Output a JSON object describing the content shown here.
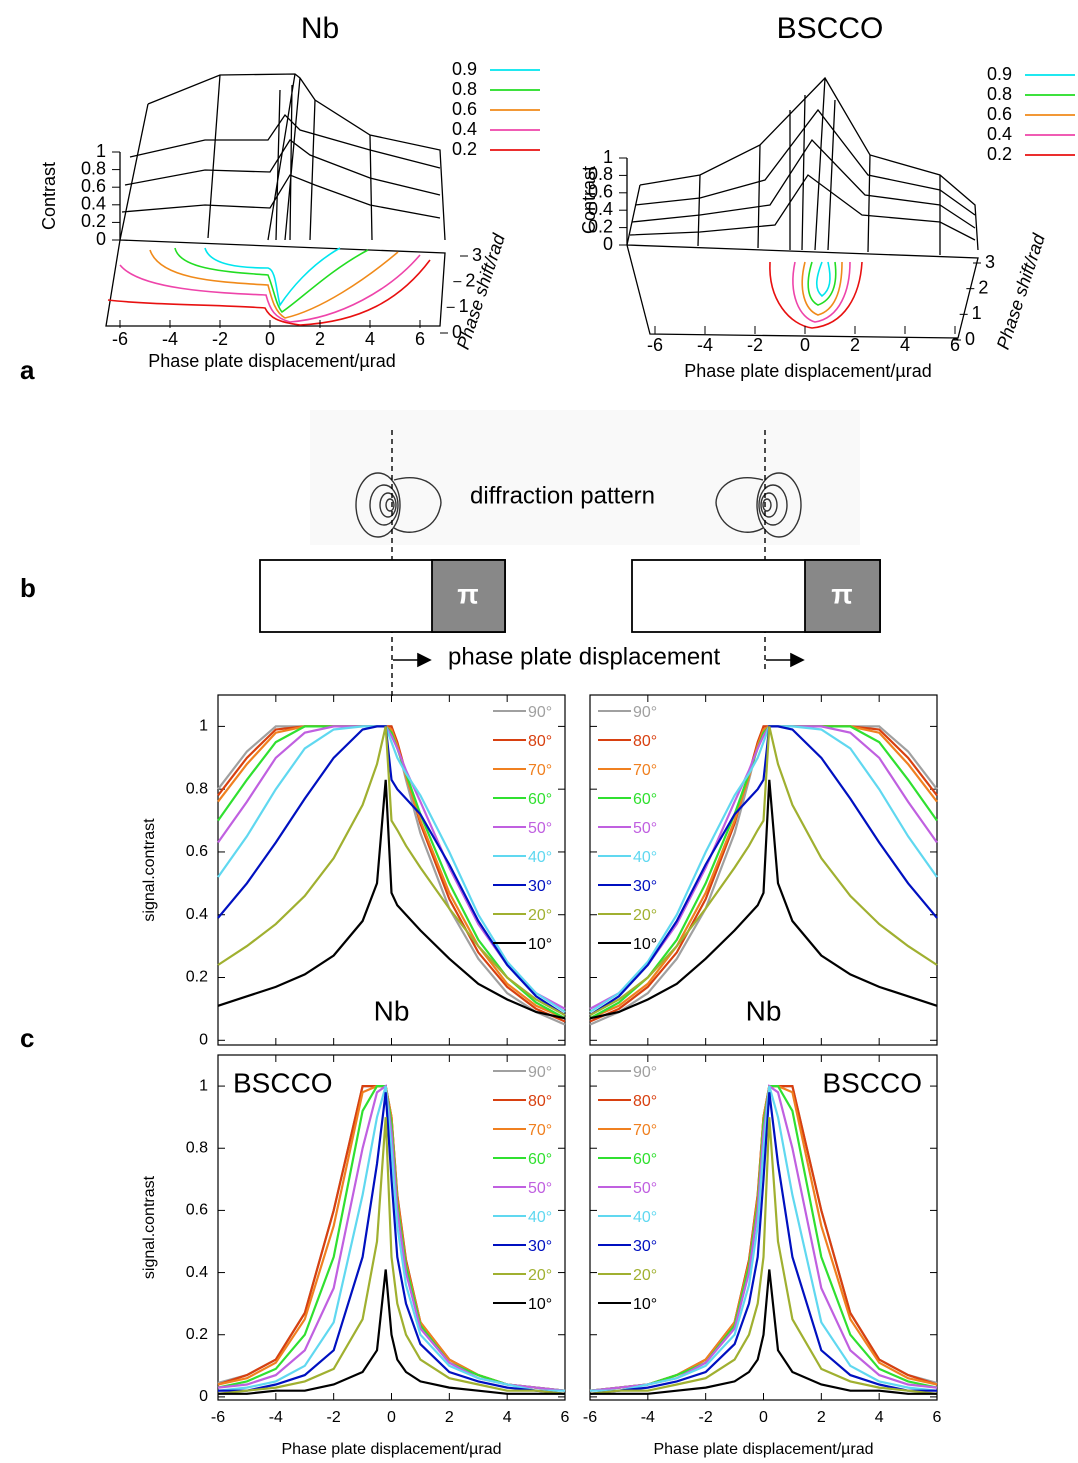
{
  "panel_labels": [
    "a",
    "b",
    "c"
  ],
  "panel_a": {
    "plots": [
      {
        "title": "Nb",
        "zlabel": "Contrast",
        "zticks": [
          0,
          0.2,
          0.4,
          0.6,
          0.8,
          1
        ],
        "xticks": [
          -6,
          -4,
          -2,
          0,
          2,
          4,
          6
        ],
        "yticks": [
          0,
          1,
          2,
          3
        ],
        "xlabel": "Phase plate displacement/µrad",
        "ylabel": "Phase shift/rad",
        "legend": [
          {
            "name": "0.9",
            "color": "#00e5ee"
          },
          {
            "name": "0.8",
            "color": "#22dd22"
          },
          {
            "name": "0.6",
            "color": "#f08a1a"
          },
          {
            "name": "0.4",
            "color": "#ee44aa"
          },
          {
            "name": "0.2",
            "color": "#e81010"
          }
        ]
      },
      {
        "title": "BSCCO",
        "zlabel": "Contrast",
        "zticks": [
          0,
          0.2,
          0.4,
          0.6,
          0.8,
          1
        ],
        "xticks": [
          -6,
          -4,
          -2,
          0,
          2,
          4,
          6
        ],
        "yticks": [
          0,
          1,
          2,
          3
        ],
        "xlabel": "Phase plate displacement/µrad",
        "ylabel": "Phase shift/rad",
        "legend": [
          {
            "name": "0.9",
            "color": "#00e5ee"
          },
          {
            "name": "0.8",
            "color": "#22dd22"
          },
          {
            "name": "0.6",
            "color": "#f08a1a"
          },
          {
            "name": "0.4",
            "color": "#ee44aa"
          },
          {
            "name": "0.2",
            "color": "#e81010"
          }
        ]
      }
    ]
  },
  "panel_b": {
    "annotation": "diffraction pattern",
    "phase_label": "π",
    "xlabel": "phase plate displacement"
  },
  "chart_data": [
    {
      "type": "line",
      "ylabel": "signal.contrast",
      "annotation": "Nb",
      "annotation_corner": "lower center",
      "legend_corner": "upper right",
      "x": [
        -6,
        -5,
        -4,
        -3,
        -2,
        -1,
        -0.5,
        -0.2,
        0,
        0.2,
        0.5,
        1,
        2,
        3,
        4,
        5,
        6
      ],
      "xlim": [
        -6,
        6
      ],
      "xticks": [
        -6,
        -4,
        -2,
        0,
        2,
        4,
        6
      ],
      "show_xtick_labels": false,
      "ylim": [
        -0.015,
        1.1
      ],
      "yticks": [
        0,
        0.2,
        0.4,
        0.6,
        0.8,
        1
      ],
      "show_ytick_labels": true,
      "series": [
        {
          "name": "90°",
          "color": "#a0a0a0",
          "values": [
            0.8,
            0.92,
            1,
            1,
            1,
            1,
            1,
            1,
            1,
            0.94,
            0.83,
            0.66,
            0.42,
            0.26,
            0.15,
            0.09,
            0.05
          ]
        },
        {
          "name": "80°",
          "color": "#d84010",
          "values": [
            0.78,
            0.9,
            0.99,
            1,
            1,
            1,
            1,
            1,
            1,
            0.95,
            0.85,
            0.69,
            0.45,
            0.28,
            0.17,
            0.1,
            0.06
          ]
        },
        {
          "name": "70°",
          "color": "#f08020",
          "values": [
            0.76,
            0.88,
            0.98,
            1,
            1,
            1,
            1,
            1,
            0.99,
            0.94,
            0.84,
            0.7,
            0.47,
            0.3,
            0.18,
            0.11,
            0.07
          ]
        },
        {
          "name": "60°",
          "color": "#30e030",
          "values": [
            0.7,
            0.83,
            0.95,
            1,
            1,
            1,
            1,
            1,
            0.98,
            0.93,
            0.85,
            0.72,
            0.5,
            0.32,
            0.2,
            0.12,
            0.07
          ]
        },
        {
          "name": "50°",
          "color": "#c060e0",
          "values": [
            0.63,
            0.76,
            0.9,
            0.98,
            1,
            1,
            1,
            1,
            0.97,
            0.93,
            0.86,
            0.76,
            0.55,
            0.37,
            0.24,
            0.15,
            0.1
          ]
        },
        {
          "name": "40°",
          "color": "#60d8f0",
          "values": [
            0.52,
            0.65,
            0.8,
            0.93,
            0.99,
            1,
            1,
            1,
            0.95,
            0.9,
            0.85,
            0.78,
            0.6,
            0.4,
            0.25,
            0.15,
            0.09
          ]
        },
        {
          "name": "30°",
          "color": "#0010c0",
          "values": [
            0.39,
            0.5,
            0.63,
            0.77,
            0.9,
            0.99,
            1,
            1,
            0.83,
            0.8,
            0.77,
            0.72,
            0.56,
            0.38,
            0.24,
            0.14,
            0.08
          ]
        },
        {
          "name": "20°",
          "color": "#a0b030",
          "values": [
            0.24,
            0.3,
            0.37,
            0.46,
            0.58,
            0.75,
            0.88,
            1,
            0.7,
            0.67,
            0.62,
            0.55,
            0.42,
            0.3,
            0.2,
            0.13,
            0.08
          ]
        },
        {
          "name": "10°",
          "color": "#000000",
          "values": [
            0.11,
            0.14,
            0.17,
            0.21,
            0.27,
            0.38,
            0.5,
            0.83,
            0.47,
            0.43,
            0.4,
            0.35,
            0.26,
            0.18,
            0.13,
            0.09,
            0.07
          ]
        }
      ]
    },
    {
      "type": "line",
      "annotation": "Nb",
      "annotation_corner": "lower center",
      "legend_corner": "upper left",
      "x": [
        -6,
        -5,
        -4,
        -3,
        -2,
        -1,
        -0.5,
        -0.2,
        0,
        0.2,
        0.5,
        1,
        2,
        3,
        4,
        5,
        6
      ],
      "xlim": [
        -6,
        6
      ],
      "xticks": [
        -6,
        -4,
        -2,
        0,
        2,
        4,
        6
      ],
      "show_xtick_labels": false,
      "ylim": [
        -0.015,
        1.1
      ],
      "yticks": [
        0,
        0.2,
        0.4,
        0.6,
        0.8,
        1
      ],
      "show_ytick_labels": false,
      "series": [
        {
          "name": "90°",
          "color": "#a0a0a0",
          "values": [
            0.05,
            0.09,
            0.15,
            0.26,
            0.42,
            0.66,
            0.83,
            0.94,
            1,
            1,
            1,
            1,
            1,
            1,
            1,
            0.92,
            0.8
          ]
        },
        {
          "name": "80°",
          "color": "#d84010",
          "values": [
            0.06,
            0.1,
            0.17,
            0.28,
            0.45,
            0.69,
            0.85,
            0.95,
            1,
            1,
            1,
            1,
            1,
            1,
            0.99,
            0.9,
            0.78
          ]
        },
        {
          "name": "70°",
          "color": "#f08020",
          "values": [
            0.07,
            0.11,
            0.18,
            0.3,
            0.47,
            0.7,
            0.84,
            0.94,
            0.99,
            1,
            1,
            1,
            1,
            1,
            0.98,
            0.88,
            0.76
          ]
        },
        {
          "name": "60°",
          "color": "#30e030",
          "values": [
            0.07,
            0.12,
            0.2,
            0.32,
            0.5,
            0.72,
            0.85,
            0.93,
            0.98,
            1,
            1,
            1,
            1,
            1,
            0.95,
            0.83,
            0.7
          ]
        },
        {
          "name": "50°",
          "color": "#c060e0",
          "values": [
            0.1,
            0.15,
            0.24,
            0.37,
            0.55,
            0.76,
            0.86,
            0.93,
            0.97,
            1,
            1,
            1,
            1,
            0.98,
            0.9,
            0.76,
            0.63
          ]
        },
        {
          "name": "40°",
          "color": "#60d8f0",
          "values": [
            0.09,
            0.15,
            0.25,
            0.4,
            0.6,
            0.78,
            0.85,
            0.9,
            0.95,
            1,
            1,
            1,
            0.99,
            0.93,
            0.8,
            0.65,
            0.52
          ]
        },
        {
          "name": "30°",
          "color": "#0010c0",
          "values": [
            0.08,
            0.14,
            0.24,
            0.38,
            0.56,
            0.72,
            0.77,
            0.8,
            0.83,
            1,
            1,
            0.99,
            0.9,
            0.77,
            0.63,
            0.5,
            0.39
          ]
        },
        {
          "name": "20°",
          "color": "#a0b030",
          "values": [
            0.08,
            0.13,
            0.2,
            0.3,
            0.42,
            0.55,
            0.62,
            0.67,
            0.7,
            1,
            0.88,
            0.75,
            0.58,
            0.46,
            0.37,
            0.3,
            0.24
          ]
        },
        {
          "name": "10°",
          "color": "#000000",
          "values": [
            0.07,
            0.09,
            0.13,
            0.18,
            0.26,
            0.35,
            0.4,
            0.43,
            0.47,
            0.83,
            0.5,
            0.38,
            0.27,
            0.21,
            0.17,
            0.14,
            0.11
          ]
        }
      ]
    },
    {
      "type": "line",
      "ylabel": "signal.contrast",
      "xlabel": "Phase plate displacement/µrad",
      "annotation": "BSCCO",
      "annotation_corner": "upper left",
      "legend_corner": "upper right",
      "x": [
        -6,
        -5,
        -4,
        -3,
        -2,
        -1,
        -0.5,
        -0.2,
        0,
        0.2,
        0.5,
        1,
        2,
        3,
        4,
        5,
        6
      ],
      "xlim": [
        -6,
        6
      ],
      "xticks": [
        -6,
        -4,
        -2,
        0,
        2,
        4,
        6
      ],
      "show_xtick_labels": true,
      "ylim": [
        -0.01,
        1.1
      ],
      "yticks": [
        0,
        0.2,
        0.4,
        0.6,
        0.8,
        1
      ],
      "show_ytick_labels": true,
      "series": [
        {
          "name": "90°",
          "color": "#a0a0a0",
          "values": [
            0.045,
            0.07,
            0.12,
            0.27,
            0.6,
            1,
            1,
            1,
            0.9,
            0.65,
            0.44,
            0.24,
            0.12,
            0.07,
            0.04,
            0.03,
            0.02
          ]
        },
        {
          "name": "80°",
          "color": "#d84010",
          "values": [
            0.04,
            0.07,
            0.12,
            0.27,
            0.6,
            1,
            1,
            1,
            0.9,
            0.65,
            0.44,
            0.24,
            0.12,
            0.07,
            0.04,
            0.03,
            0.02
          ]
        },
        {
          "name": "70°",
          "color": "#f08020",
          "values": [
            0.04,
            0.06,
            0.11,
            0.25,
            0.55,
            0.98,
            1,
            1,
            0.9,
            0.64,
            0.43,
            0.24,
            0.12,
            0.07,
            0.04,
            0.03,
            0.02
          ]
        },
        {
          "name": "60°",
          "color": "#30e030",
          "values": [
            0.03,
            0.05,
            0.09,
            0.2,
            0.45,
            0.92,
            1,
            1,
            0.88,
            0.62,
            0.42,
            0.23,
            0.11,
            0.07,
            0.04,
            0.03,
            0.02
          ]
        },
        {
          "name": "50°",
          "color": "#c060e0",
          "values": [
            0.03,
            0.04,
            0.07,
            0.15,
            0.35,
            0.8,
            0.98,
            1,
            0.85,
            0.6,
            0.4,
            0.22,
            0.11,
            0.06,
            0.04,
            0.03,
            0.02
          ]
        },
        {
          "name": "40°",
          "color": "#60d8f0",
          "values": [
            0.02,
            0.03,
            0.05,
            0.1,
            0.24,
            0.65,
            0.9,
            1,
            0.8,
            0.55,
            0.36,
            0.2,
            0.1,
            0.06,
            0.04,
            0.02,
            0.02
          ]
        },
        {
          "name": "30°",
          "color": "#0010c0",
          "values": [
            0.02,
            0.02,
            0.04,
            0.07,
            0.15,
            0.45,
            0.75,
            0.98,
            0.7,
            0.45,
            0.3,
            0.17,
            0.08,
            0.05,
            0.03,
            0.02,
            0.01
          ]
        },
        {
          "name": "20°",
          "color": "#a0b030",
          "values": [
            0.01,
            0.02,
            0.03,
            0.05,
            0.09,
            0.25,
            0.5,
            0.9,
            0.45,
            0.3,
            0.2,
            0.12,
            0.06,
            0.04,
            0.02,
            0.02,
            0.01
          ]
        },
        {
          "name": "10°",
          "color": "#000000",
          "values": [
            0.01,
            0.01,
            0.02,
            0.02,
            0.04,
            0.08,
            0.15,
            0.41,
            0.2,
            0.12,
            0.08,
            0.05,
            0.03,
            0.02,
            0.01,
            0.01,
            0.01
          ]
        }
      ]
    },
    {
      "type": "line",
      "xlabel": "Phase plate displacement/µrad",
      "annotation": "BSCCO",
      "annotation_corner": "upper right",
      "legend_corner": "upper left",
      "x": [
        -6,
        -5,
        -4,
        -3,
        -2,
        -1,
        -0.5,
        -0.2,
        0,
        0.2,
        0.5,
        1,
        2,
        3,
        4,
        5,
        6
      ],
      "xlim": [
        -6,
        6
      ],
      "xticks": [
        -6,
        -4,
        -2,
        0,
        2,
        4,
        6
      ],
      "show_xtick_labels": true,
      "ylim": [
        -0.01,
        1.1
      ],
      "yticks": [
        0,
        0.2,
        0.4,
        0.6,
        0.8,
        1
      ],
      "show_ytick_labels": false,
      "series": [
        {
          "name": "90°",
          "color": "#a0a0a0",
          "values": [
            0.02,
            0.03,
            0.04,
            0.07,
            0.12,
            0.24,
            0.44,
            0.65,
            0.9,
            1,
            1,
            1,
            0.6,
            0.27,
            0.12,
            0.07,
            0.045
          ]
        },
        {
          "name": "80°",
          "color": "#d84010",
          "values": [
            0.02,
            0.03,
            0.04,
            0.07,
            0.12,
            0.24,
            0.44,
            0.65,
            0.9,
            1,
            1,
            1,
            0.6,
            0.27,
            0.12,
            0.07,
            0.04
          ]
        },
        {
          "name": "70°",
          "color": "#f08020",
          "values": [
            0.02,
            0.03,
            0.04,
            0.07,
            0.12,
            0.24,
            0.43,
            0.64,
            0.9,
            1,
            1,
            0.98,
            0.55,
            0.25,
            0.11,
            0.06,
            0.04
          ]
        },
        {
          "name": "60°",
          "color": "#30e030",
          "values": [
            0.02,
            0.03,
            0.04,
            0.07,
            0.11,
            0.23,
            0.42,
            0.62,
            0.88,
            1,
            1,
            0.92,
            0.45,
            0.2,
            0.09,
            0.05,
            0.03
          ]
        },
        {
          "name": "50°",
          "color": "#c060e0",
          "values": [
            0.02,
            0.03,
            0.04,
            0.06,
            0.11,
            0.22,
            0.4,
            0.6,
            0.85,
            1,
            0.98,
            0.8,
            0.35,
            0.15,
            0.07,
            0.04,
            0.03
          ]
        },
        {
          "name": "40°",
          "color": "#60d8f0",
          "values": [
            0.02,
            0.02,
            0.04,
            0.06,
            0.1,
            0.2,
            0.36,
            0.55,
            0.8,
            1,
            0.9,
            0.65,
            0.24,
            0.1,
            0.05,
            0.03,
            0.02
          ]
        },
        {
          "name": "30°",
          "color": "#0010c0",
          "values": [
            0.01,
            0.02,
            0.03,
            0.05,
            0.08,
            0.17,
            0.3,
            0.45,
            0.7,
            0.98,
            0.75,
            0.45,
            0.15,
            0.07,
            0.04,
            0.02,
            0.02
          ]
        },
        {
          "name": "20°",
          "color": "#a0b030",
          "values": [
            0.01,
            0.02,
            0.02,
            0.04,
            0.06,
            0.12,
            0.2,
            0.3,
            0.45,
            0.9,
            0.5,
            0.25,
            0.09,
            0.05,
            0.03,
            0.02,
            0.01
          ]
        },
        {
          "name": "10°",
          "color": "#000000",
          "values": [
            0.01,
            0.01,
            0.01,
            0.02,
            0.03,
            0.05,
            0.08,
            0.12,
            0.2,
            0.41,
            0.15,
            0.08,
            0.04,
            0.02,
            0.02,
            0.01,
            0.01
          ]
        }
      ]
    }
  ]
}
